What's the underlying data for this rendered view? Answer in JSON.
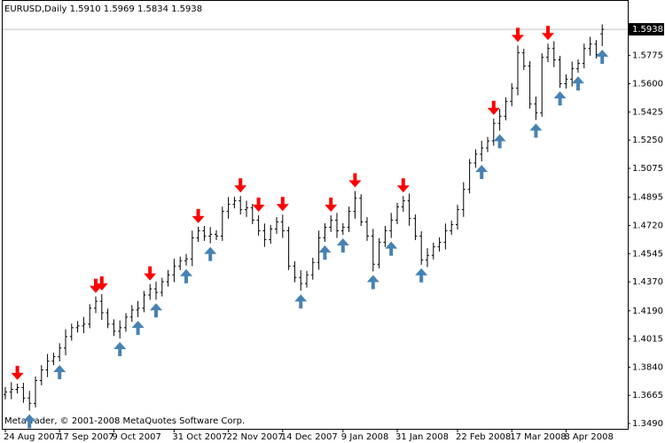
{
  "chart_data": {
    "type": "ohlc",
    "title": "EURUSD,Daily  1.5910 1.5969 1.5834 1.5938",
    "footer": "MetaTrader, © 2001-2008 MetaQuotes Software Corp.",
    "categories": [
      "24 Aug 2007",
      null,
      null,
      null,
      null,
      null,
      null,
      null,
      null,
      "17 Sep 2007",
      null,
      null,
      null,
      null,
      null,
      null,
      null,
      null,
      "9 Oct 2007",
      null,
      null,
      null,
      null,
      null,
      null,
      null,
      null,
      null,
      "31 Oct 2007",
      null,
      null,
      null,
      null,
      null,
      null,
      null,
      null,
      "22 Nov 2007",
      null,
      null,
      null,
      null,
      null,
      null,
      null,
      null,
      "14 Dec 2007",
      null,
      null,
      null,
      null,
      null,
      null,
      null,
      null,
      null,
      "9 Jan 2008",
      null,
      null,
      null,
      null,
      null,
      null,
      null,
      null,
      "31 Jan 2008",
      null,
      null,
      null,
      null,
      null,
      null,
      null,
      null,
      null,
      "22 Feb 2008",
      null,
      null,
      null,
      null,
      null,
      null,
      null,
      null,
      "17 Mar 2008",
      null,
      null,
      null,
      null,
      null,
      null,
      null,
      null,
      "8 Apr 2008",
      null,
      null,
      null,
      null,
      null,
      null
    ],
    "open": [
      1.367,
      1.3686,
      1.3702,
      1.3713,
      1.3648,
      1.3615,
      1.3757,
      1.3823,
      1.3877,
      1.3905,
      1.3959,
      1.403,
      1.4085,
      1.4096,
      1.4107,
      1.4206,
      1.4249,
      1.4178,
      1.4107,
      1.4063,
      1.4085,
      1.4151,
      1.4195,
      1.4206,
      1.4288,
      1.4326,
      1.4304,
      1.437,
      1.4413,
      1.4468,
      1.4501,
      1.4512,
      1.4643,
      1.4687,
      1.4654,
      1.4665,
      1.4654,
      1.4807,
      1.4851,
      1.4873,
      1.4818,
      1.4829,
      1.4753,
      1.4687,
      1.4632,
      1.4698,
      1.4742,
      1.4687,
      1.4468,
      1.4397,
      1.4359,
      1.4413,
      1.449,
      1.4643,
      1.4709,
      1.4753,
      1.4687,
      1.4709,
      1.4807,
      1.4889,
      1.4742,
      1.4654,
      1.4479,
      1.4616,
      1.4687,
      1.4753,
      1.4835,
      1.4873,
      1.4763,
      1.4654,
      1.4506,
      1.4534,
      1.4588,
      1.4616,
      1.4687,
      1.4725,
      1.4818,
      1.4944,
      1.5108,
      1.5163,
      1.5201,
      1.5245,
      1.5354,
      1.5398,
      1.5491,
      1.5573,
      1.5792,
      1.571,
      1.5475,
      1.542,
      1.5764,
      1.5819,
      1.5748,
      1.56,
      1.5628,
      1.5693,
      1.5726,
      1.5819,
      1.5846,
      1.591
    ],
    "high": [
      1.3716,
      1.3747,
      1.3738,
      1.3743,
      1.3693,
      1.3782,
      1.3853,
      1.3922,
      1.393,
      1.3989,
      1.4075,
      1.411,
      1.4126,
      1.4152,
      1.4231,
      1.4279,
      1.4294,
      1.4203,
      1.4137,
      1.413,
      1.4176,
      1.4225,
      1.4251,
      1.4313,
      1.4356,
      1.4371,
      1.4395,
      1.4443,
      1.4513,
      1.4526,
      1.4542,
      1.4688,
      1.4712,
      1.4717,
      1.471,
      1.469,
      1.4837,
      1.4896,
      1.4898,
      1.4903,
      1.4874,
      1.4854,
      1.4783,
      1.4732,
      1.4723,
      1.4772,
      1.4787,
      1.4712,
      1.4498,
      1.4442,
      1.4438,
      1.452,
      1.4688,
      1.4734,
      1.4783,
      1.4798,
      1.4734,
      1.4837,
      1.4934,
      1.4914,
      1.4772,
      1.4699,
      1.4641,
      1.4717,
      1.4798,
      1.486,
      1.4903,
      1.4918,
      1.4788,
      1.4684,
      1.4579,
      1.4613,
      1.4646,
      1.4732,
      1.475,
      1.4848,
      1.4989,
      1.5133,
      1.5193,
      1.5246,
      1.527,
      1.5384,
      1.5443,
      1.5516,
      1.5603,
      1.5837,
      1.5817,
      1.574,
      1.552,
      1.5789,
      1.5849,
      1.5864,
      1.5773,
      1.5658,
      1.5738,
      1.5751,
      1.5849,
      1.5891,
      1.5871,
      1.5969
    ],
    "low": [
      1.364,
      1.3641,
      1.3677,
      1.3618,
      1.357,
      1.359,
      1.3727,
      1.3778,
      1.3852,
      1.3875,
      1.3914,
      1.4005,
      1.4055,
      1.4051,
      1.4082,
      1.4176,
      1.4133,
      1.4082,
      1.4033,
      1.4018,
      1.406,
      1.4121,
      1.415,
      1.4181,
      1.4258,
      1.4259,
      1.4279,
      1.434,
      1.4368,
      1.4443,
      1.4471,
      1.4467,
      1.4618,
      1.4624,
      1.4609,
      1.4629,
      1.4624,
      1.4762,
      1.4826,
      1.4788,
      1.4773,
      1.4728,
      1.4657,
      1.4587,
      1.4607,
      1.4668,
      1.4642,
      1.4443,
      1.4367,
      1.4314,
      1.4334,
      1.4383,
      1.4445,
      1.4618,
      1.4679,
      1.4642,
      1.4662,
      1.4679,
      1.4762,
      1.4717,
      1.4624,
      1.4434,
      1.4454,
      1.4586,
      1.4642,
      1.4728,
      1.4805,
      1.4718,
      1.4629,
      1.4476,
      1.4461,
      1.4509,
      1.4558,
      1.4571,
      1.4662,
      1.4695,
      1.4773,
      1.4919,
      1.5078,
      1.5118,
      1.5176,
      1.5215,
      1.5309,
      1.5373,
      1.5461,
      1.5528,
      1.5685,
      1.5445,
      1.5375,
      1.5395,
      1.5734,
      1.5703,
      1.5575,
      1.557,
      1.5583,
      1.5668,
      1.5696,
      1.5774,
      1.5756,
      1.5834
    ],
    "close": [
      1.3686,
      1.3702,
      1.3713,
      1.3648,
      1.3615,
      1.3757,
      1.3823,
      1.3877,
      1.3905,
      1.3959,
      1.403,
      1.4085,
      1.4096,
      1.4107,
      1.4206,
      1.4249,
      1.4178,
      1.4107,
      1.4063,
      1.4085,
      1.4151,
      1.4195,
      1.4206,
      1.4288,
      1.4326,
      1.4304,
      1.437,
      1.4413,
      1.4468,
      1.4501,
      1.4512,
      1.4643,
      1.4687,
      1.4654,
      1.4665,
      1.4654,
      1.4807,
      1.4851,
      1.4873,
      1.4818,
      1.4829,
      1.4753,
      1.4687,
      1.4632,
      1.4698,
      1.4742,
      1.4687,
      1.4468,
      1.4397,
      1.4359,
      1.4413,
      1.449,
      1.4643,
      1.4709,
      1.4753,
      1.4687,
      1.4709,
      1.4807,
      1.4889,
      1.4742,
      1.4654,
      1.4479,
      1.4616,
      1.4687,
      1.4753,
      1.4835,
      1.4873,
      1.4763,
      1.4654,
      1.4506,
      1.4534,
      1.4588,
      1.4616,
      1.4687,
      1.4725,
      1.4818,
      1.4944,
      1.5108,
      1.5163,
      1.5201,
      1.5245,
      1.5354,
      1.5398,
      1.5491,
      1.5573,
      1.5792,
      1.571,
      1.5475,
      1.542,
      1.5764,
      1.5819,
      1.5748,
      1.56,
      1.5628,
      1.5693,
      1.5726,
      1.5819,
      1.5846,
      1.5781,
      1.5938
    ],
    "bar_color": "#000000",
    "down_fractals": [
      2,
      15,
      16,
      24,
      32,
      39,
      42,
      46,
      54,
      58,
      66,
      81,
      85,
      90
    ],
    "down_color": "#ff0000",
    "up_fractals": [
      4,
      9,
      19,
      22,
      25,
      30,
      34,
      49,
      53,
      56,
      61,
      64,
      69,
      79,
      82,
      88,
      92,
      95,
      99
    ],
    "up_color": "#4682b4",
    "last_price": 1.5938,
    "ylim": [
      1.3457,
      1.612
    ],
    "yticks": [
      1.5775,
      {
        "value": 1.56,
        "label": "1.5600"
      },
      1.5425,
      {
        "value": 1.525,
        "label": "1.5250"
      },
      1.5075,
      1.4895,
      {
        "value": 1.472,
        "label": "1.4720"
      },
      1.4545,
      {
        "value": 1.437,
        "label": "1.4370"
      },
      {
        "value": 1.419,
        "label": "1.4190"
      },
      1.4015,
      {
        "value": 1.384,
        "label": "1.3840"
      },
      1.3665,
      {
        "value": 1.349,
        "label": "1.3490"
      }
    ]
  }
}
